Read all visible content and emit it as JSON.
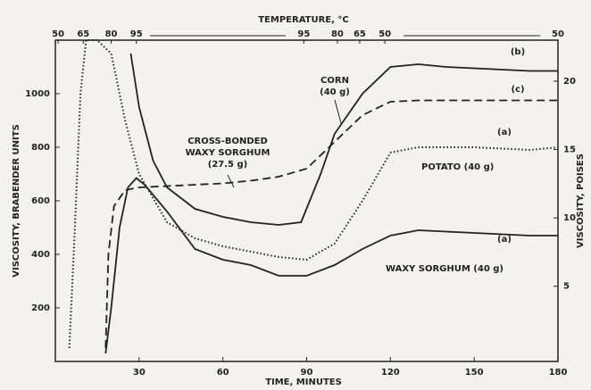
{
  "chart_data": {
    "type": "line",
    "xlabel": "TIME, MINUTES",
    "ylabel": "VISCOSITY, BRABENDER UNITS",
    "y2label": "VISCOSITY, POISES",
    "xlim": [
      0,
      180
    ],
    "xticks": [
      30,
      60,
      90,
      120,
      150,
      180
    ],
    "ylim": [
      0,
      1200
    ],
    "yticks": [
      200,
      400,
      600,
      800,
      1000
    ],
    "y2lim": [
      -0.5,
      23
    ],
    "y2ticks": [
      5,
      10,
      15,
      20
    ],
    "top_axis": {
      "label": "TEMPERATURE, °C",
      "ticks": [
        {
          "value": 1,
          "label": "50"
        },
        {
          "value": 10,
          "label": "65"
        },
        {
          "value": 20,
          "label": "80"
        },
        {
          "value": 29,
          "label": "95"
        },
        {
          "value": 89,
          "label": "95"
        },
        {
          "value": 101,
          "label": "80"
        },
        {
          "value": 109,
          "label": "65"
        },
        {
          "value": 118,
          "label": "50"
        },
        {
          "value": 180,
          "label": "50"
        }
      ]
    },
    "color": "#222222",
    "series": [
      {
        "label": "(a)",
        "dash": "dotted",
        "x": [
          5,
          7,
          9,
          11,
          15,
          20,
          25,
          30,
          40,
          50,
          60,
          70,
          80,
          90,
          100,
          110,
          120,
          130,
          140,
          150,
          160,
          170,
          180
        ],
        "values": [
          50,
          500,
          1000,
          1200,
          1200,
          1150,
          900,
          700,
          520,
          460,
          430,
          410,
          390,
          380,
          440,
          600,
          780,
          800,
          800,
          800,
          795,
          790,
          800
        ]
      },
      {
        "label": "(b)",
        "dash": "solid",
        "x": [
          27,
          30,
          35,
          40,
          50,
          60,
          70,
          80,
          88,
          95,
          100,
          110,
          120,
          130,
          140,
          150,
          160,
          170,
          180
        ],
        "values": [
          1150,
          950,
          750,
          650,
          570,
          540,
          520,
          510,
          520,
          700,
          850,
          1000,
          1100,
          1110,
          1100,
          1095,
          1090,
          1085,
          1085
        ]
      },
      {
        "label": "(c)",
        "dash": "dashed",
        "x": [
          18,
          19,
          21,
          25,
          30,
          40,
          50,
          60,
          70,
          80,
          90,
          100,
          110,
          120,
          130,
          140,
          150,
          160,
          170,
          180
        ],
        "values": [
          50,
          400,
          580,
          640,
          650,
          655,
          660,
          665,
          675,
          690,
          720,
          820,
          920,
          970,
          975,
          975,
          975,
          975,
          975,
          975
        ]
      },
      {
        "label": "(a)",
        "dash": "solid",
        "x": [
          18,
          20,
          23,
          26,
          29,
          32,
          40,
          50,
          60,
          70,
          80,
          90,
          100,
          110,
          120,
          130,
          140,
          150,
          160,
          170,
          180
        ],
        "values": [
          30,
          200,
          500,
          650,
          685,
          660,
          560,
          420,
          380,
          360,
          320,
          320,
          360,
          420,
          470,
          490,
          485,
          480,
          475,
          470,
          470
        ]
      }
    ],
    "annotations": [
      [
        "CORN",
        "(40 g)"
      ],
      [
        "CROSS-BONDED",
        "WAXY SORGHUM",
        "(27.5 g)"
      ],
      [
        "POTATO (40 g)"
      ],
      [
        "WAXY SORGHUM (40 g)"
      ]
    ]
  }
}
